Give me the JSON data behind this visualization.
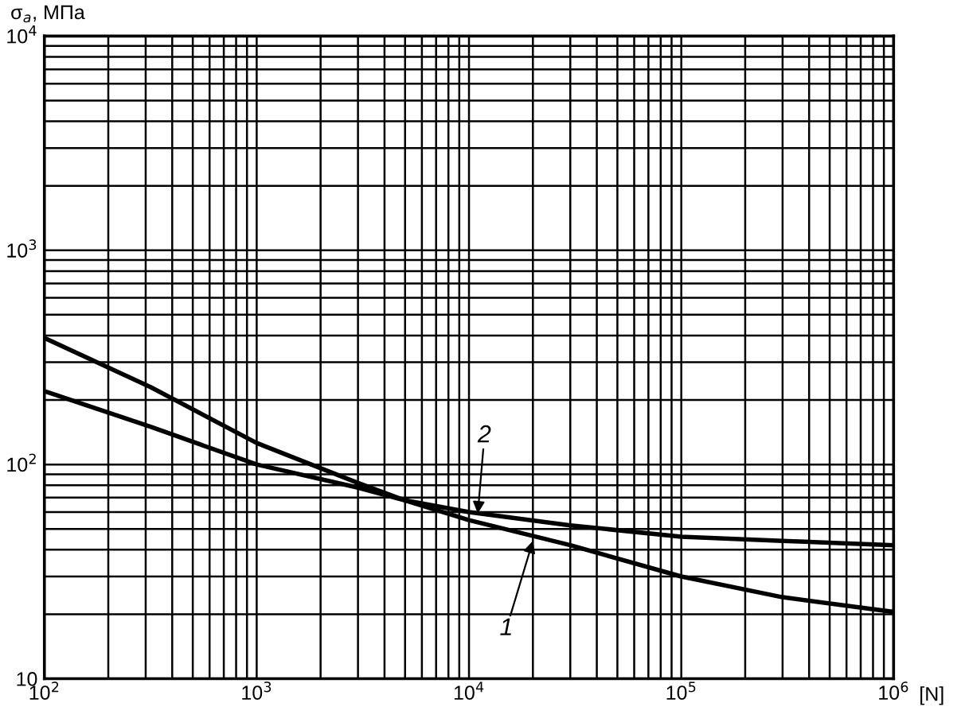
{
  "chart_data": {
    "type": "line",
    "ylabel": "σ$_{a}$, МПа",
    "xlabel": "[N]",
    "log": "xy",
    "grid": true,
    "line_style": "solid",
    "marker": "none",
    "x": [
      100,
      316,
      1000,
      3000,
      5000,
      10000,
      30000,
      100000,
      300000,
      1000000
    ],
    "series": [
      {
        "color": "#000000",
        "values": [
          390,
          230,
          126,
          82,
          68,
          55,
          42,
          30,
          24,
          20.5
        ]
      },
      {
        "color": "#000000",
        "values": [
          220,
          150,
          100,
          78,
          68,
          60,
          52,
          46,
          44,
          42
        ]
      }
    ],
    "xlim": [
      100,
      1000000
    ],
    "ylim": [
      10,
      10000
    ],
    "xticks": [
      {
        "value": 100,
        "label": "10$^{2}$"
      },
      {
        "value": 1000,
        "label": "10$^{3}$"
      },
      {
        "value": 10000,
        "label": "10$^{4}$"
      },
      {
        "value": 100000,
        "label": "10$^{5}$"
      },
      {
        "value": 1000000,
        "label": "10$^{6}$"
      }
    ],
    "yticks": [
      10,
      {
        "value": 100,
        "label": "10$^{2}$"
      },
      {
        "value": 1000,
        "label": "10$^{3}$"
      },
      {
        "value": 10000,
        "label": "10$^{4}$"
      }
    ],
    "annotations": [
      {
        "text": "1",
        "x": 20000,
        "y": 44
      },
      {
        "text": "2",
        "x": 11000,
        "y": 59
      }
    ]
  }
}
